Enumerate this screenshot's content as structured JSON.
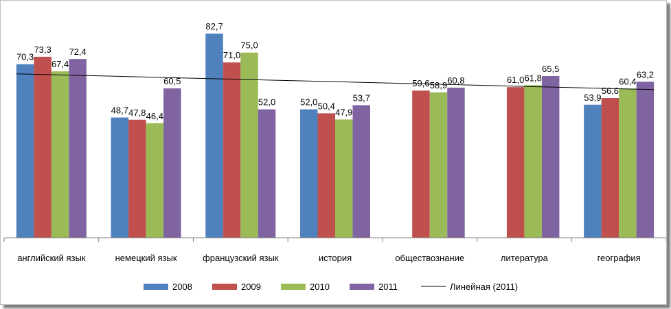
{
  "chart_data": {
    "type": "bar",
    "categories": [
      "английский язык",
      "немецкий язык",
      "французский язык",
      "история",
      "обществознание",
      "литература",
      "география"
    ],
    "series": [
      {
        "name": "2008",
        "color": "#4f81bd",
        "values": [
          70.3,
          48.7,
          82.7,
          52.0,
          null,
          null,
          53.9
        ],
        "labels": [
          "70,3",
          "48,7",
          "82,7",
          "52,0",
          "",
          "",
          "53,9"
        ]
      },
      {
        "name": "2009",
        "color": "#c0504d",
        "values": [
          73.3,
          47.8,
          71.0,
          50.4,
          59.6,
          61.0,
          56.6
        ],
        "labels": [
          "73,3",
          "47,8",
          "71,0",
          "50,4",
          "59,6",
          "61,0",
          "56,6"
        ]
      },
      {
        "name": "2010",
        "color": "#9bbb59",
        "values": [
          67.4,
          46.4,
          75.0,
          47.9,
          58.9,
          61.8,
          60.4
        ],
        "labels": [
          "67,4",
          "46,4",
          "75,0",
          "47,9",
          "58,9",
          "61,8",
          "60,4"
        ]
      },
      {
        "name": "2011",
        "color": "#8064a2",
        "values": [
          72.4,
          60.5,
          52.0,
          53.7,
          60.8,
          65.5,
          63.2
        ],
        "labels": [
          "72,4",
          "60,5",
          "52,0",
          "53,7",
          "60,8",
          "65,5",
          "63,2"
        ]
      }
    ],
    "trendline": {
      "name": "Линейная (2011)",
      "series": "2011",
      "color": "#000000",
      "start": 66.4,
      "end": 60.0
    },
    "ylim": [
      0,
      85
    ],
    "y_axis_visible": false,
    "grid": false,
    "legend": "bottom"
  }
}
